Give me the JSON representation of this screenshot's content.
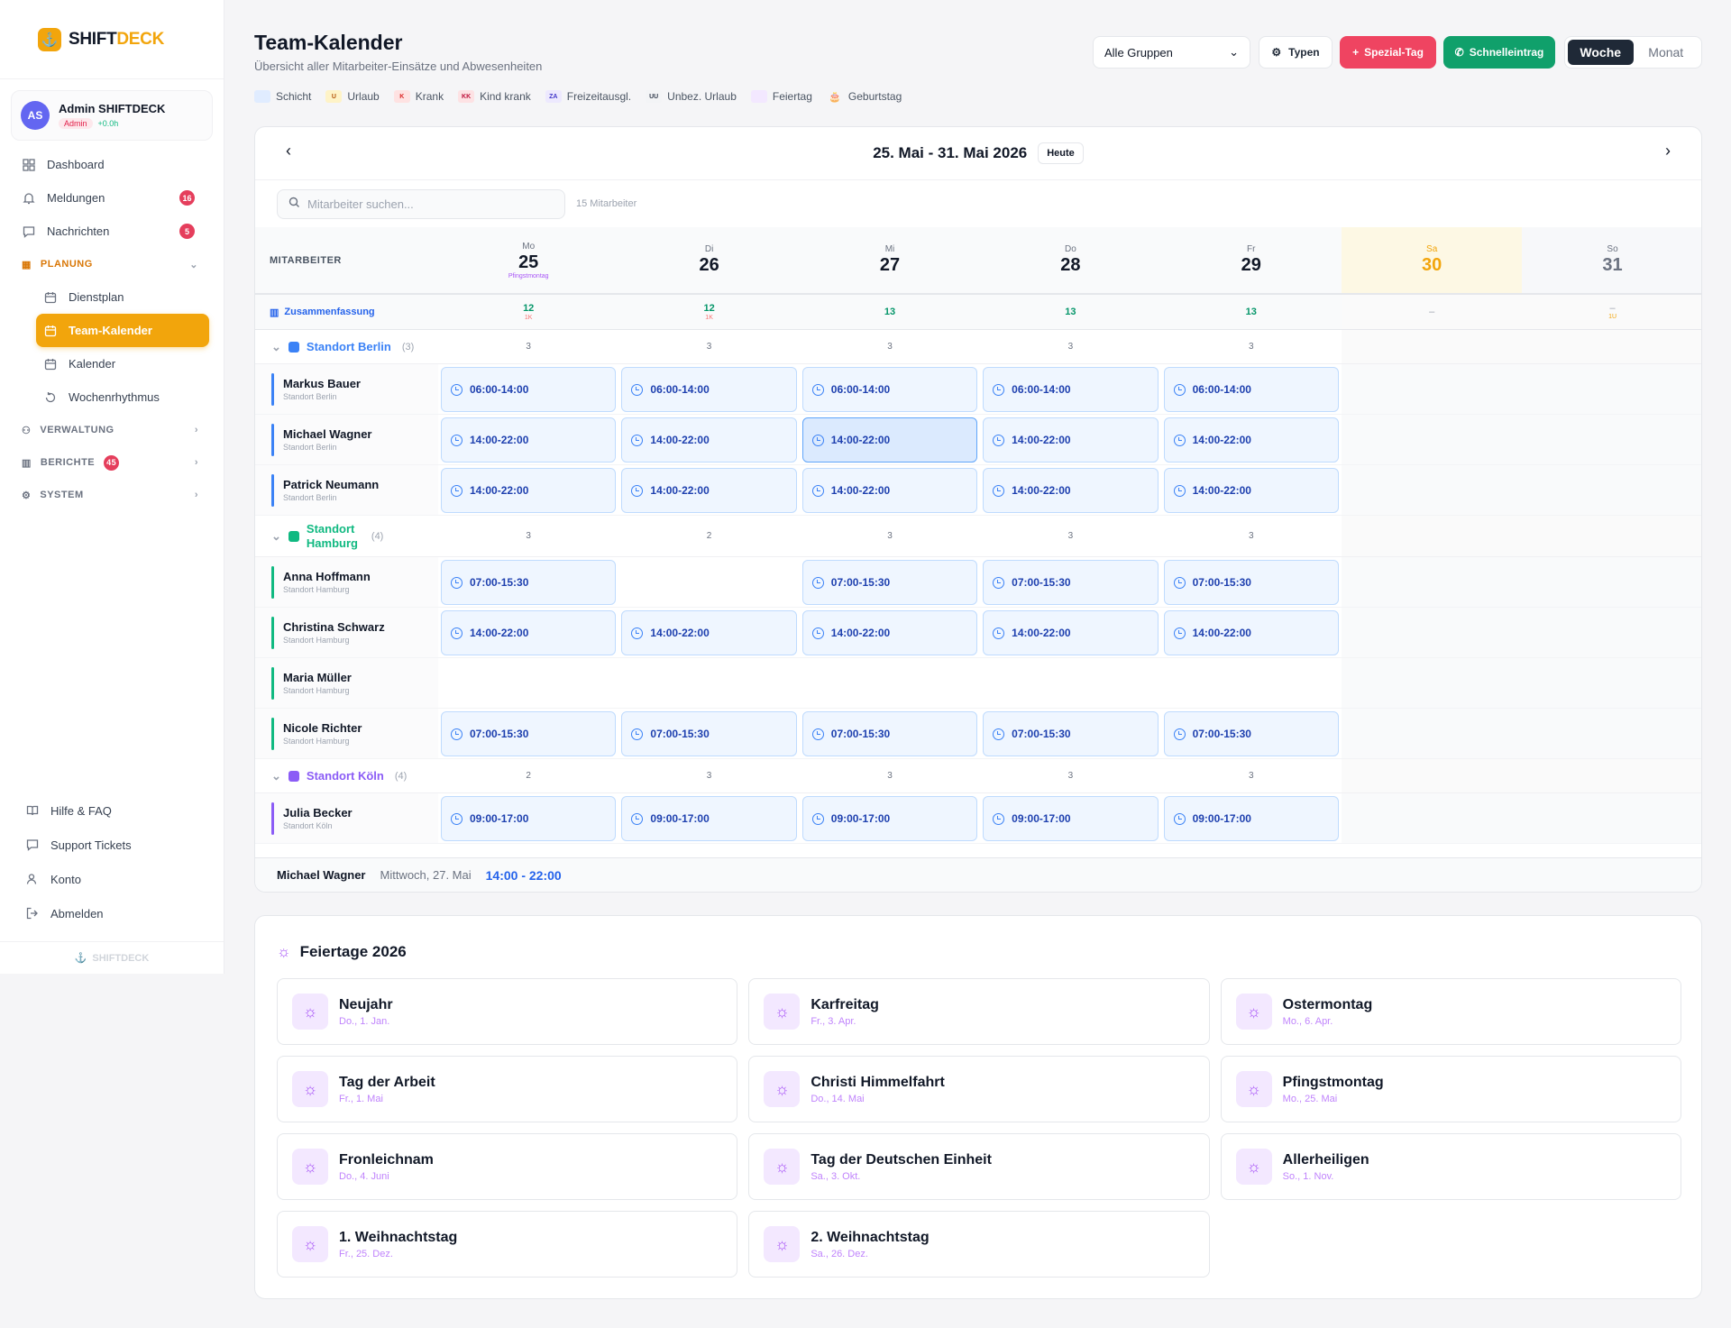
{
  "app": {
    "brand_a": "SHIFT",
    "brand_b": "DECK",
    "footer": "SHIFTDECK"
  },
  "user": {
    "initials": "AS",
    "name": "Admin SHIFTDECK",
    "role": "Admin",
    "hours": "+0.0h"
  },
  "nav": {
    "dashboard": "Dashboard",
    "meldungen": "Meldungen",
    "meldungen_badge": "16",
    "nachrichten": "Nachrichten",
    "nachrichten_badge": "5",
    "planung": "PLANUNG",
    "dienstplan": "Dienstplan",
    "teamkalender": "Team-Kalender",
    "kalender": "Kalender",
    "wochenrhythmus": "Wochenrhythmus",
    "verwaltung": "VERWALTUNG",
    "berichte": "BERICHTE",
    "berichte_badge": "45",
    "system": "SYSTEM",
    "hilfe": "Hilfe & FAQ",
    "support": "Support Tickets",
    "konto": "Konto",
    "abmelden": "Abmelden"
  },
  "header": {
    "title": "Team-Kalender",
    "subtitle": "Übersicht aller Mitarbeiter-Einsätze und Abwesenheiten",
    "group_select": "Alle Gruppen",
    "typen": "Typen",
    "spezial": "Spezial-Tag",
    "schnell": "Schnelleintrag",
    "woche": "Woche",
    "monat": "Monat"
  },
  "legend": [
    {
      "label": "Schicht",
      "code": "",
      "bg": "#e0ecff",
      "fg": "#1e40af"
    },
    {
      "label": "Urlaub",
      "code": "U",
      "bg": "#fef3c7",
      "fg": "#b45309"
    },
    {
      "label": "Krank",
      "code": "K",
      "bg": "#fee2e2",
      "fg": "#dc2626"
    },
    {
      "label": "Kind krank",
      "code": "KK",
      "bg": "#fde2e4",
      "fg": "#be123c"
    },
    {
      "label": "Freizeitausgl.",
      "code": "ZA",
      "bg": "#ede9fe",
      "fg": "#4338ca"
    },
    {
      "label": "Unbez. Urlaub",
      "code": "UU",
      "bg": "#f3f4f6",
      "fg": "#374151"
    },
    {
      "label": "Feiertag",
      "code": "",
      "bg": "#f3e8ff",
      "fg": "#a855f7"
    },
    {
      "label": "Geburtstag",
      "code": "🎂",
      "bg": "transparent",
      "fg": "#92400e"
    }
  ],
  "calendar": {
    "range": "25. Mai - 31. Mai 2026",
    "today": "Heute",
    "search_placeholder": "Mitarbeiter suchen...",
    "count": "15 Mitarbeiter",
    "col_label": "MITARBEITER",
    "summary_label": "Zusammenfassung",
    "days": [
      {
        "name": "Mo",
        "num": "25",
        "sub": "Pfingstmontag"
      },
      {
        "name": "Di",
        "num": "26",
        "sub": ""
      },
      {
        "name": "Mi",
        "num": "27",
        "sub": ""
      },
      {
        "name": "Do",
        "num": "28",
        "sub": ""
      },
      {
        "name": "Fr",
        "num": "29",
        "sub": ""
      },
      {
        "name": "Sa",
        "num": "30",
        "sub": ""
      },
      {
        "name": "So",
        "num": "31",
        "sub": ""
      }
    ],
    "summary": [
      {
        "v": "12",
        "k": "1K",
        "u": ""
      },
      {
        "v": "12",
        "k": "1K",
        "u": ""
      },
      {
        "v": "13",
        "k": "",
        "u": ""
      },
      {
        "v": "13",
        "k": "",
        "u": ""
      },
      {
        "v": "13",
        "k": "",
        "u": ""
      },
      {
        "v": "–",
        "k": "",
        "u": ""
      },
      {
        "v": "–",
        "k": "",
        "u": "1U"
      }
    ],
    "groups": [
      {
        "name": "Standort Berlin",
        "count": "(3)",
        "color": "#3b82f6",
        "daycounts": [
          "3",
          "3",
          "3",
          "3",
          "3"
        ],
        "employees": [
          {
            "name": "Markus Bauer",
            "loc": "Standort Berlin",
            "shifts": [
              "06:00-14:00",
              "06:00-14:00",
              "06:00-14:00",
              "06:00-14:00",
              "06:00-14:00"
            ]
          },
          {
            "name": "Michael Wagner",
            "loc": "Standort Berlin",
            "shifts": [
              "14:00-22:00",
              "14:00-22:00",
              "14:00-22:00",
              "14:00-22:00",
              "14:00-22:00"
            ]
          },
          {
            "name": "Patrick Neumann",
            "loc": "Standort Berlin",
            "shifts": [
              "14:00-22:00",
              "14:00-22:00",
              "14:00-22:00",
              "14:00-22:00",
              "14:00-22:00"
            ]
          }
        ]
      },
      {
        "name": "Standort Hamburg",
        "count": "(4)",
        "color": "#10b981",
        "daycounts": [
          "3",
          "2",
          "3",
          "3",
          "3"
        ],
        "employees": [
          {
            "name": "Anna Hoffmann",
            "loc": "Standort Hamburg",
            "shifts": [
              "07:00-15:30",
              "",
              "07:00-15:30",
              "07:00-15:30",
              "07:00-15:30"
            ]
          },
          {
            "name": "Christina Schwarz",
            "loc": "Standort Hamburg",
            "shifts": [
              "14:00-22:00",
              "14:00-22:00",
              "14:00-22:00",
              "14:00-22:00",
              "14:00-22:00"
            ]
          },
          {
            "name": "Maria Müller",
            "loc": "Standort Hamburg",
            "shifts": [
              "",
              "",
              "",
              "",
              ""
            ]
          },
          {
            "name": "Nicole Richter",
            "loc": "Standort Hamburg",
            "shifts": [
              "07:00-15:30",
              "07:00-15:30",
              "07:00-15:30",
              "07:00-15:30",
              "07:00-15:30"
            ]
          }
        ]
      },
      {
        "name": "Standort Köln",
        "count": "(4)",
        "color": "#8b5cf6",
        "daycounts": [
          "2",
          "3",
          "3",
          "3",
          "3"
        ],
        "employees": [
          {
            "name": "Julia Becker",
            "loc": "Standort Köln",
            "shifts": [
              "09:00-17:00",
              "09:00-17:00",
              "09:00-17:00",
              "09:00-17:00",
              "09:00-17:00"
            ]
          }
        ]
      }
    ],
    "status": {
      "name": "Michael Wagner",
      "date": "Mittwoch, 27. Mai",
      "time": "14:00 - 22:00"
    }
  },
  "holidays": {
    "title": "Feiertage 2026",
    "items": [
      {
        "name": "Neujahr",
        "date": "Do., 1. Jan."
      },
      {
        "name": "Karfreitag",
        "date": "Fr., 3. Apr."
      },
      {
        "name": "Ostermontag",
        "date": "Mo., 6. Apr."
      },
      {
        "name": "Tag der Arbeit",
        "date": "Fr., 1. Mai"
      },
      {
        "name": "Christi Himmelfahrt",
        "date": "Do., 14. Mai"
      },
      {
        "name": "Pfingstmontag",
        "date": "Mo., 25. Mai"
      },
      {
        "name": "Fronleichnam",
        "date": "Do., 4. Juni"
      },
      {
        "name": "Tag der Deutschen Einheit",
        "date": "Sa., 3. Okt."
      },
      {
        "name": "Allerheiligen",
        "date": "So., 1. Nov."
      },
      {
        "name": "1. Weihnachtstag",
        "date": "Fr., 25. Dez."
      },
      {
        "name": "2. Weihnachtstag",
        "date": "Sa., 26. Dez."
      }
    ]
  }
}
